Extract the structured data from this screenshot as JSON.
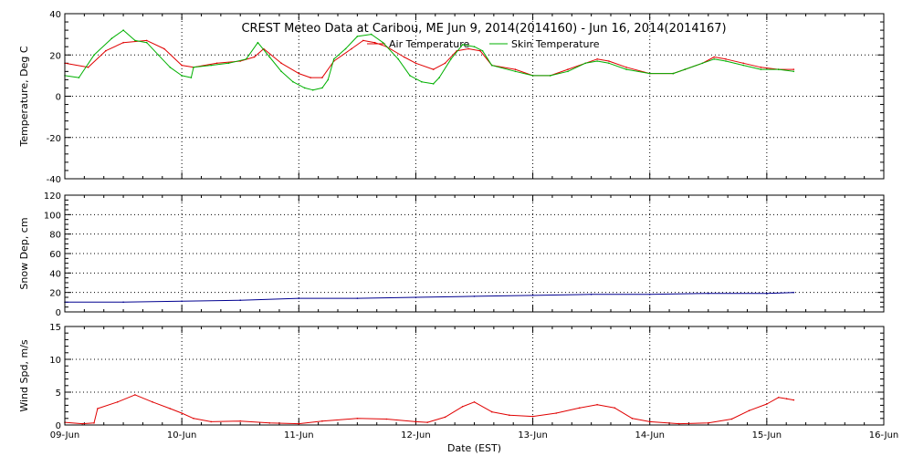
{
  "chart_data": {
    "title": "CREST Meteo Data at Caribou, ME   Jun  9, 2014(2014160) - Jun 16, 2014(2014167)",
    "xlabel": "Date (EST)",
    "x_tick_labels": [
      "09-Jun",
      "10-Jun",
      "11-Jun",
      "12-Jun",
      "13-Jun",
      "14-Jun",
      "15-Jun",
      "16-Jun"
    ],
    "xlim": [
      0,
      7
    ],
    "x_unit": "days since 09-Jun 00:00 EST",
    "panels": [
      {
        "type": "line",
        "ylabel": "Temperature, Deg C",
        "ylim": [
          -40,
          40
        ],
        "yticks": [
          -40,
          -20,
          0,
          20,
          40
        ],
        "grid": true,
        "legend_position": "top-center",
        "series": [
          {
            "name": "Air Temperature",
            "color": "#e00000",
            "points": [
              [
                0,
                16
              ],
              [
                0.2,
                14
              ],
              [
                0.35,
                22
              ],
              [
                0.5,
                26
              ],
              [
                0.7,
                27
              ],
              [
                0.85,
                23
              ],
              [
                1.0,
                15
              ],
              [
                1.1,
                14
              ],
              [
                1.3,
                16
              ],
              [
                1.5,
                17
              ],
              [
                1.62,
                19
              ],
              [
                1.7,
                23
              ],
              [
                1.85,
                16
              ],
              [
                2.0,
                11
              ],
              [
                2.1,
                9
              ],
              [
                2.2,
                9
              ],
              [
                2.3,
                17
              ],
              [
                2.45,
                23
              ],
              [
                2.55,
                27
              ],
              [
                2.65,
                26
              ],
              [
                2.75,
                24
              ],
              [
                2.9,
                19
              ],
              [
                3.0,
                16
              ],
              [
                3.15,
                13
              ],
              [
                3.25,
                16
              ],
              [
                3.35,
                22
              ],
              [
                3.45,
                23
              ],
              [
                3.55,
                22
              ],
              [
                3.65,
                15
              ],
              [
                3.85,
                13
              ],
              [
                4.0,
                10
              ],
              [
                4.15,
                10
              ],
              [
                4.3,
                13
              ],
              [
                4.45,
                16
              ],
              [
                4.55,
                18
              ],
              [
                4.65,
                17
              ],
              [
                4.8,
                14
              ],
              [
                5.0,
                11
              ],
              [
                5.2,
                11
              ],
              [
                5.3,
                13
              ],
              [
                5.45,
                16
              ],
              [
                5.55,
                19
              ],
              [
                5.65,
                18
              ],
              [
                5.8,
                16
              ],
              [
                5.95,
                14
              ],
              [
                6.1,
                13
              ],
              [
                6.23,
                13
              ]
            ]
          },
          {
            "name": "Skin Temperature",
            "color": "#00b000",
            "points": [
              [
                0,
                10
              ],
              [
                0.12,
                9
              ],
              [
                0.25,
                20
              ],
              [
                0.4,
                28
              ],
              [
                0.5,
                32
              ],
              [
                0.6,
                27
              ],
              [
                0.7,
                26
              ],
              [
                0.8,
                20
              ],
              [
                0.9,
                14
              ],
              [
                1.0,
                10
              ],
              [
                1.08,
                9
              ],
              [
                1.1,
                14
              ],
              [
                1.25,
                15
              ],
              [
                1.4,
                16
              ],
              [
                1.55,
                18
              ],
              [
                1.65,
                26
              ],
              [
                1.75,
                19
              ],
              [
                1.85,
                12
              ],
              [
                1.95,
                7
              ],
              [
                2.05,
                4
              ],
              [
                2.12,
                3
              ],
              [
                2.2,
                4
              ],
              [
                2.25,
                8
              ],
              [
                2.3,
                18
              ],
              [
                2.4,
                23
              ],
              [
                2.5,
                29
              ],
              [
                2.62,
                30
              ],
              [
                2.72,
                26
              ],
              [
                2.85,
                18
              ],
              [
                2.95,
                10
              ],
              [
                3.05,
                7
              ],
              [
                3.15,
                6
              ],
              [
                3.2,
                9
              ],
              [
                3.3,
                18
              ],
              [
                3.4,
                25
              ],
              [
                3.5,
                24
              ],
              [
                3.57,
                22
              ],
              [
                3.65,
                15
              ],
              [
                3.85,
                12
              ],
              [
                4.0,
                10
              ],
              [
                4.15,
                10
              ],
              [
                4.3,
                12
              ],
              [
                4.45,
                16
              ],
              [
                4.55,
                17
              ],
              [
                4.65,
                16
              ],
              [
                4.8,
                13
              ],
              [
                5.0,
                11
              ],
              [
                5.2,
                11
              ],
              [
                5.3,
                13
              ],
              [
                5.45,
                16
              ],
              [
                5.55,
                18
              ],
              [
                5.65,
                17
              ],
              [
                5.8,
                15
              ],
              [
                5.95,
                13
              ],
              [
                6.1,
                13
              ],
              [
                6.23,
                12
              ]
            ]
          }
        ]
      },
      {
        "type": "line",
        "ylabel": "Snow Dep, cm",
        "ylim": [
          0,
          120
        ],
        "yticks": [
          0,
          20,
          40,
          60,
          80,
          100,
          120
        ],
        "grid": true,
        "series": [
          {
            "name": "Snow Depth",
            "color": "#000090",
            "points": [
              [
                0,
                10
              ],
              [
                0.5,
                10
              ],
              [
                1.0,
                11
              ],
              [
                1.5,
                12
              ],
              [
                2.0,
                14
              ],
              [
                2.5,
                14
              ],
              [
                3.0,
                15
              ],
              [
                3.5,
                16
              ],
              [
                4.0,
                17
              ],
              [
                4.5,
                18
              ],
              [
                5.0,
                18
              ],
              [
                5.5,
                19
              ],
              [
                6.0,
                19
              ],
              [
                6.23,
                20
              ]
            ]
          }
        ]
      },
      {
        "type": "line",
        "ylabel": "Wind Spd, m/s",
        "ylim": [
          0,
          15
        ],
        "yticks": [
          0,
          5,
          10,
          15
        ],
        "grid": true,
        "series": [
          {
            "name": "Wind Speed",
            "color": "#e00000",
            "points": [
              [
                0,
                0.4
              ],
              [
                0.15,
                0.2
              ],
              [
                0.25,
                0.3
              ],
              [
                0.28,
                2.5
              ],
              [
                0.45,
                3.5
              ],
              [
                0.6,
                4.6
              ],
              [
                0.75,
                3.5
              ],
              [
                0.9,
                2.5
              ],
              [
                1.0,
                1.8
              ],
              [
                1.1,
                1.0
              ],
              [
                1.25,
                0.5
              ],
              [
                1.5,
                0.6
              ],
              [
                1.75,
                0.3
              ],
              [
                2.0,
                0.2
              ],
              [
                2.2,
                0.6
              ],
              [
                2.5,
                1.0
              ],
              [
                2.75,
                0.9
              ],
              [
                3.0,
                0.5
              ],
              [
                3.1,
                0.4
              ],
              [
                3.25,
                1.2
              ],
              [
                3.4,
                2.8
              ],
              [
                3.5,
                3.5
              ],
              [
                3.65,
                2.0
              ],
              [
                3.8,
                1.5
              ],
              [
                4.0,
                1.3
              ],
              [
                4.2,
                1.8
              ],
              [
                4.4,
                2.6
              ],
              [
                4.55,
                3.1
              ],
              [
                4.7,
                2.6
              ],
              [
                4.85,
                1.0
              ],
              [
                5.0,
                0.5
              ],
              [
                5.25,
                0.2
              ],
              [
                5.5,
                0.3
              ],
              [
                5.7,
                0.9
              ],
              [
                5.85,
                2.2
              ],
              [
                6.0,
                3.2
              ],
              [
                6.1,
                4.2
              ],
              [
                6.17,
                4.0
              ],
              [
                6.23,
                3.8
              ]
            ]
          }
        ]
      }
    ]
  }
}
